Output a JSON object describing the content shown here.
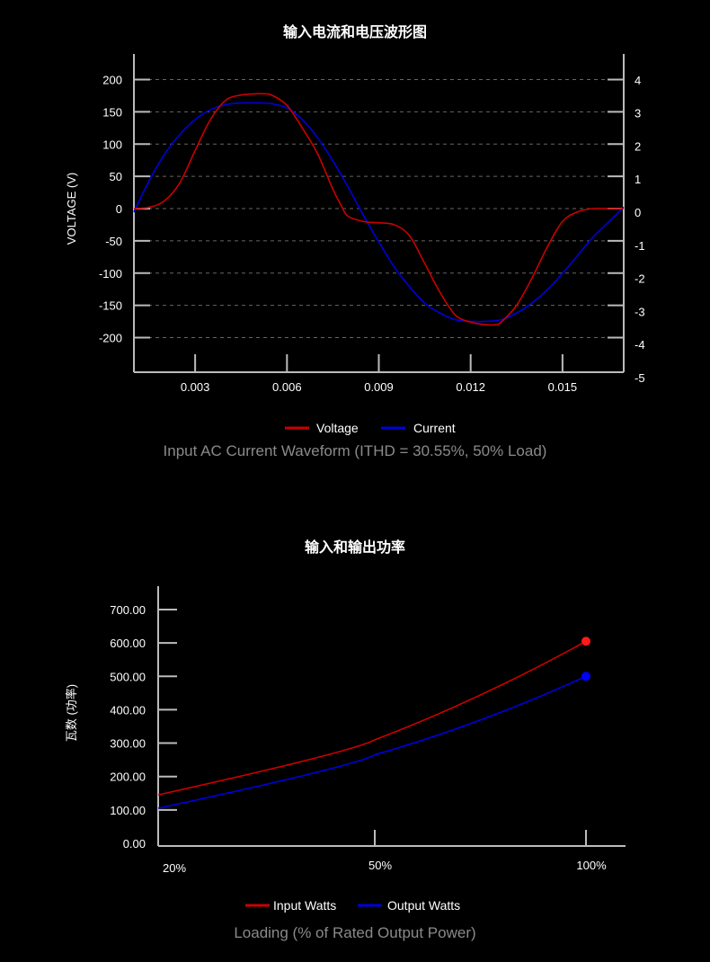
{
  "chart_data": [
    {
      "type": "line",
      "title": "输入电流和电压波形图",
      "caption": "Input AC Current Waveform (ITHD = 30.55%, 50% Load)",
      "ylabel": "VOLTAGE (V)",
      "xlim": [
        0.001,
        0.017
      ],
      "ylim": [
        -250,
        230
      ],
      "y2lim": [
        -5,
        4.5
      ],
      "x_ticks": [
        "0.003",
        "0.006",
        "0.009",
        "0.012",
        "0.015"
      ],
      "y_ticks": [
        "200",
        "150",
        "100",
        "50",
        "0",
        "-50",
        "-100",
        "-150",
        "-200"
      ],
      "y2_ticks": [
        "4",
        "3",
        "2",
        "1",
        "0",
        "-1",
        "-2",
        "-3",
        "-4",
        "-5"
      ],
      "grid": "dashed horizontal",
      "legend_position": "bottom",
      "colors": {
        "voltage": "#cc0000",
        "current": "#0000dd"
      },
      "series": [
        {
          "name": "Voltage",
          "axis": "left",
          "x": [
            0.001,
            0.0015,
            0.002,
            0.0025,
            0.003,
            0.0035,
            0.004,
            0.0045,
            0.005,
            0.0052,
            0.0055,
            0.006,
            0.0065,
            0.007,
            0.0075,
            0.0078,
            0.008,
            0.0085,
            0.009,
            0.0095,
            0.01,
            0.0105,
            0.011,
            0.0115,
            0.012,
            0.0125,
            0.0128,
            0.013,
            0.0135,
            0.014,
            0.0145,
            0.015,
            0.0155,
            0.016,
            0.0165,
            0.017
          ],
          "values": [
            0,
            2,
            12,
            40,
            90,
            138,
            168,
            176,
            178,
            178,
            176,
            160,
            125,
            85,
            30,
            2,
            -12,
            -20,
            -22,
            -25,
            -42,
            -85,
            -130,
            -165,
            -176,
            -180,
            -180,
            -176,
            -150,
            -108,
            -60,
            -20,
            -5,
            0,
            0,
            0
          ]
        },
        {
          "name": "Current",
          "axis": "right",
          "x": [
            0.001,
            0.0015,
            0.002,
            0.0025,
            0.003,
            0.0035,
            0.004,
            0.0045,
            0.005,
            0.0052,
            0.0055,
            0.006,
            0.0065,
            0.007,
            0.0075,
            0.008,
            0.0085,
            0.009,
            0.0095,
            0.01,
            0.0105,
            0.011,
            0.0115,
            0.012,
            0.0125,
            0.013,
            0.0135,
            0.014,
            0.0145,
            0.015,
            0.0155,
            0.016,
            0.0165,
            0.017
          ],
          "values": [
            0,
            0.95,
            1.75,
            2.35,
            2.8,
            3.1,
            3.25,
            3.3,
            3.3,
            3.3,
            3.28,
            3.15,
            2.8,
            2.25,
            1.55,
            0.75,
            -0.1,
            -0.9,
            -1.65,
            -2.25,
            -2.75,
            -3.05,
            -3.25,
            -3.3,
            -3.3,
            -3.25,
            -3.05,
            -2.75,
            -2.35,
            -1.85,
            -1.3,
            -0.75,
            -0.3,
            0.15
          ]
        }
      ]
    },
    {
      "type": "line",
      "title": "输入和输出功率",
      "caption": "Loading (% of Rated Output Power)",
      "ylabel": "瓦数 (功率)",
      "ylim": [
        0,
        730
      ],
      "y_ticks": [
        "700.00",
        "600.00",
        "500.00",
        "400.00",
        "300.00",
        "200.00",
        "100.00",
        "0.00"
      ],
      "categories": [
        "20%",
        "50%",
        "100%"
      ],
      "legend_position": "bottom",
      "colors": {
        "input": "#cc0000",
        "output": "#0000dd"
      },
      "series": [
        {
          "name": "Input Watts",
          "values": [
            145,
            310,
            605
          ]
        },
        {
          "name": "Output Watts",
          "values": [
            105,
            265,
            500
          ]
        }
      ]
    }
  ]
}
